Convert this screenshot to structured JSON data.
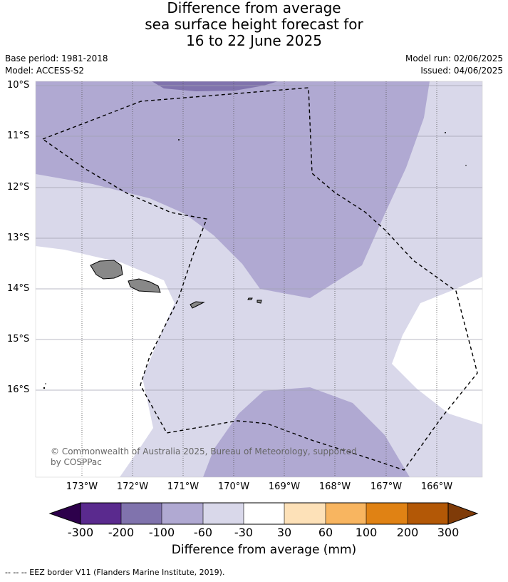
{
  "title": {
    "line1": "Difference from average",
    "line2": "sea surface height forecast for",
    "line3": "16 to 22 June 2025"
  },
  "meta": {
    "base_period": "Base period: 1981-2018",
    "model": "Model: ACCESS-S2",
    "model_run": "Model run: 02/06/2025",
    "issued": "Issued: 04/06/2025"
  },
  "map": {
    "lat_labels": [
      "10°S",
      "11°S",
      "12°S",
      "13°S",
      "14°S",
      "15°S",
      "16°S"
    ],
    "lon_labels": [
      "173°W",
      "172°W",
      "171°W",
      "170°W",
      "169°W",
      "168°W",
      "167°W",
      "166°W"
    ],
    "copyright_line1": "© Commonwealth of Australia 2025, Bureau of Meteorology, supported",
    "copyright_line2": "by COSPPac",
    "colors": {
      "c_m300_m200": "#5a2a8e",
      "c_m200_m100": "#8073ad",
      "c_m100_m60": "#b0a9d2",
      "c_m60_m30": "#d9d8ea",
      "c_m30_30": "#ffffff",
      "c_30_60": "#fde1b8",
      "c_60_100": "#f8b560",
      "c_100_200": "#e08214",
      "c_200_300": "#b35806",
      "land": "#888888"
    }
  },
  "colorbar": {
    "tick_labels": [
      "-300",
      "-200",
      "-100",
      "-60",
      "-30",
      "30",
      "60",
      "100",
      "200",
      "300"
    ],
    "title": "Difference from average (mm)",
    "extend_low_color": "#2d004b",
    "extend_high_color": "#7f3b08"
  },
  "legend": {
    "eez": "--  --  -- EEZ border V11 (Flanders Marine Institute, 2019)."
  }
}
